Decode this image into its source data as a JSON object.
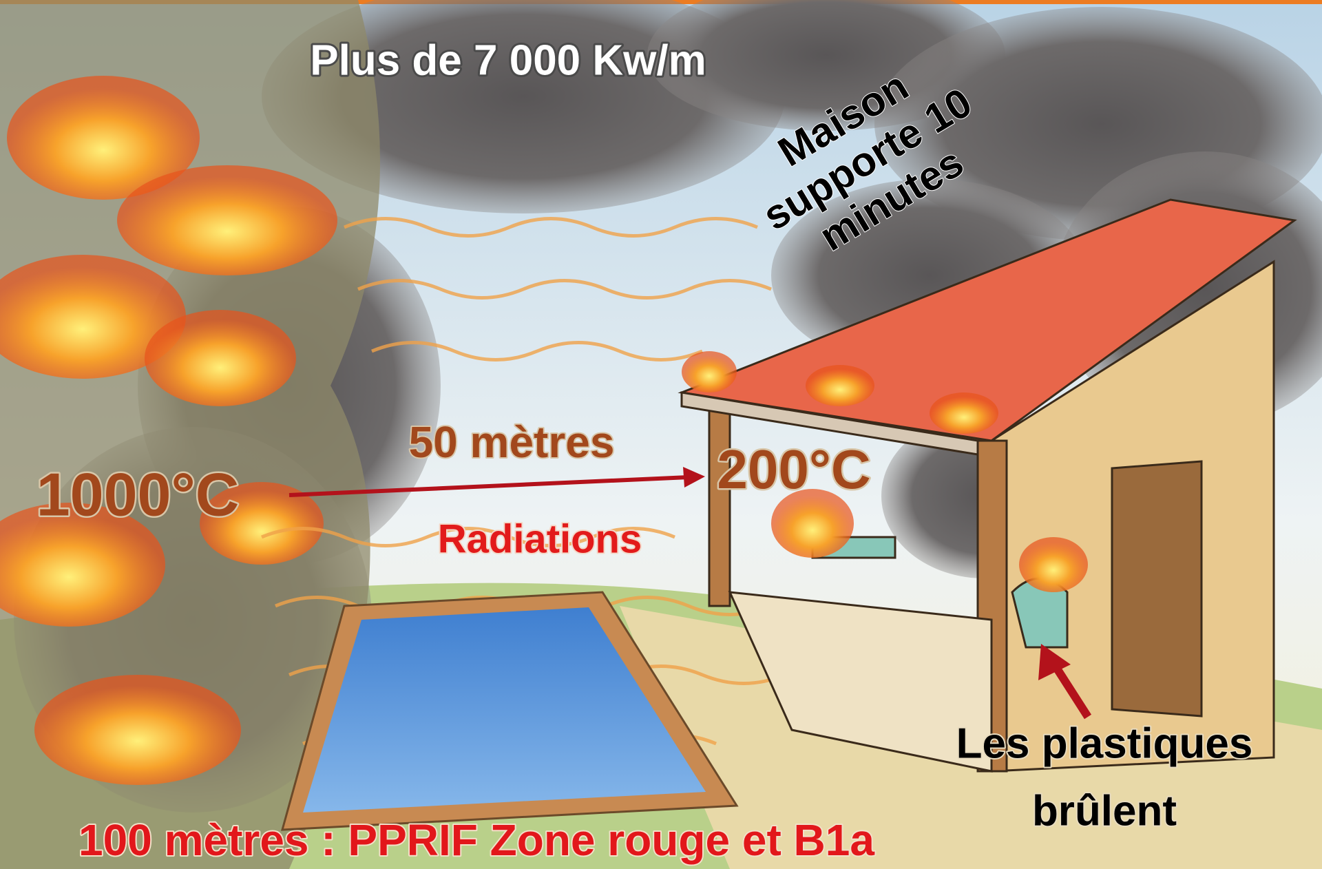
{
  "labels": {
    "power": "Plus de 7 000 Kw/m",
    "house_resists": [
      "Maison",
      "supporte 10",
      "minutes"
    ],
    "distance": "50 mètres",
    "source_temp": "1000°C",
    "house_temp": "200°C",
    "radiations": "Radiations",
    "plastics": [
      "Les plastiques",
      "brûlent"
    ],
    "zone": "100 mètres : PPRIF Zone rouge et B1a"
  }
}
